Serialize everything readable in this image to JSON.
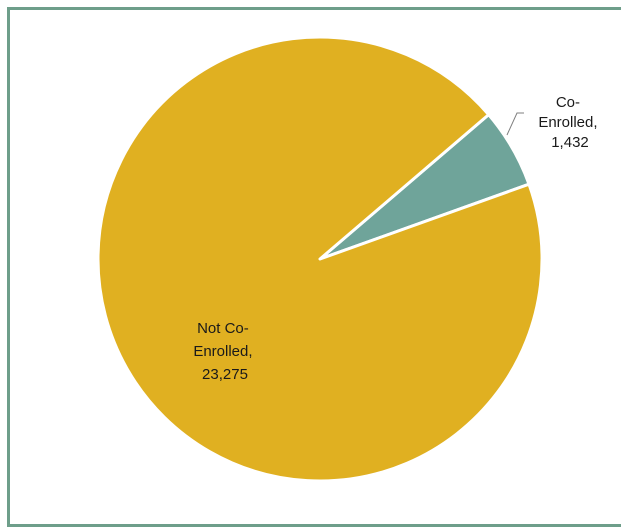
{
  "chart_data": {
    "type": "pie",
    "title": "",
    "slices": [
      {
        "label_lines": [
          "Co-",
          "Enrolled,",
          "1,432"
        ],
        "category": "Co-Enrolled",
        "value": 1432,
        "color": "#6fa49a"
      },
      {
        "label_lines": [
          "Not Co-",
          "Enrolled,",
          "23,275"
        ],
        "category": "Not Co-Enrolled",
        "value": 23275,
        "color": "#e0b021"
      }
    ],
    "border_color": "#6e9e8a",
    "slice_separator_color": "#ffffff"
  }
}
